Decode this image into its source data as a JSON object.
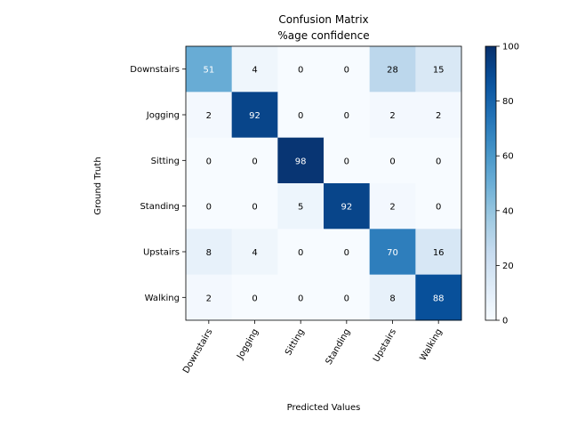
{
  "chart_data": {
    "type": "heatmap",
    "title": "Confusion Matrix",
    "subtitle": "%age confidence",
    "xlabel": "Predicted Values",
    "ylabel": "Ground Truth",
    "x_categories": [
      "Downstairs",
      "Jogging",
      "Sitting",
      "Standing",
      "Upstairs",
      "Walking"
    ],
    "y_categories": [
      "Downstairs",
      "Jogging",
      "Sitting",
      "Standing",
      "Upstairs",
      "Walking"
    ],
    "values": [
      [
        51,
        4,
        0,
        0,
        28,
        15
      ],
      [
        2,
        92,
        0,
        0,
        2,
        2
      ],
      [
        0,
        0,
        98,
        0,
        0,
        0
      ],
      [
        0,
        0,
        5,
        92,
        2,
        0
      ],
      [
        8,
        4,
        0,
        0,
        70,
        16
      ],
      [
        2,
        0,
        0,
        0,
        8,
        88
      ]
    ],
    "colormap": "Blues",
    "colorbar": {
      "range": [
        0,
        100
      ],
      "ticks": [
        0,
        20,
        40,
        60,
        80,
        100
      ]
    },
    "grid": false
  }
}
